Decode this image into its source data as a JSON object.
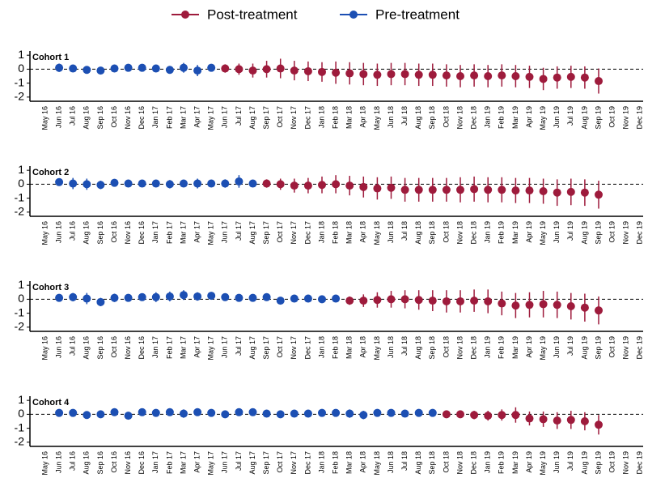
{
  "chart_data": [
    {
      "type": "errorbar",
      "title": "Cohort 1",
      "categories": [
        "May 16",
        "Jun 16",
        "Jul 16",
        "Aug 16",
        "Sep 16",
        "Oct 16",
        "Nov 16",
        "Dec 16",
        "Jan 17",
        "Feb 17",
        "Mar 17",
        "Apr 17",
        "May 17",
        "Jun 17",
        "Jul 17",
        "Aug 17",
        "Sep 17",
        "Oct 17",
        "Nov 17",
        "Dec 17",
        "Jan 18",
        "Feb 18",
        "Mar 18",
        "Apr 18",
        "May 18",
        "Jun 18",
        "Jul 18",
        "Aug 18",
        "Sep 18",
        "Oct 18",
        "Nov 18",
        "Dec 18",
        "Jan 19",
        "Feb 19",
        "Mar 19",
        "Apr 19",
        "May 19",
        "Jun 19",
        "Jul 19",
        "Aug 19",
        "Sep 19",
        "Oct 19",
        "Nov 19",
        "Dec 19"
      ],
      "ylim": [
        -2.3,
        1.3
      ],
      "yticks": [
        1,
        0,
        -1,
        -2
      ],
      "hline": 0,
      "series": [
        {
          "name": "Post-treatment",
          "color": "#9e1b3c",
          "values": [
            null,
            null,
            null,
            null,
            null,
            null,
            null,
            null,
            null,
            null,
            null,
            null,
            null,
            0.05,
            0,
            -0.1,
            0,
            0.05,
            -0.1,
            -0.15,
            -0.2,
            -0.25,
            -0.3,
            -0.35,
            -0.4,
            -0.35,
            -0.35,
            -0.4,
            -0.4,
            -0.45,
            -0.5,
            -0.45,
            -0.5,
            -0.45,
            -0.5,
            -0.55,
            -0.7,
            -0.6,
            -0.55,
            -0.6,
            -0.85,
            null,
            null,
            null
          ],
          "errors": [
            null,
            null,
            null,
            null,
            null,
            null,
            null,
            null,
            null,
            null,
            null,
            null,
            null,
            0.3,
            0.4,
            0.5,
            0.6,
            0.7,
            0.7,
            0.7,
            0.7,
            0.8,
            0.8,
            0.8,
            0.8,
            0.8,
            0.8,
            0.8,
            0.8,
            0.8,
            0.8,
            0.8,
            0.8,
            0.8,
            0.8,
            0.8,
            0.8,
            0.8,
            0.8,
            0.8,
            0.9,
            null,
            null,
            null
          ]
        },
        {
          "name": "Pre-treatment",
          "color": "#1c4fb3",
          "values": [
            null,
            0.1,
            0.05,
            -0.05,
            -0.1,
            0.05,
            0.1,
            0.1,
            0.05,
            -0.05,
            0.1,
            -0.1,
            0.1,
            null,
            null,
            null,
            null,
            null,
            null,
            null,
            null,
            null,
            null,
            null,
            null,
            null,
            null,
            null,
            null,
            null,
            null,
            null,
            null,
            null,
            null,
            null,
            null,
            null,
            null,
            null,
            null,
            null,
            null,
            null
          ],
          "errors": [
            null,
            0.3,
            0.15,
            0.15,
            0.2,
            0.15,
            0.15,
            0.2,
            0.15,
            0.2,
            0.35,
            0.4,
            0.2,
            null,
            null,
            null,
            null,
            null,
            null,
            null,
            null,
            null,
            null,
            null,
            null,
            null,
            null,
            null,
            null,
            null,
            null,
            null,
            null,
            null,
            null,
            null,
            null,
            null,
            null,
            null,
            null,
            null,
            null,
            null
          ]
        }
      ]
    },
    {
      "type": "errorbar",
      "title": "Cohort 2",
      "categories": [
        "May 16",
        "Jun 16",
        "Jul 16",
        "Aug 16",
        "Sep 16",
        "Oct 16",
        "Nov 16",
        "Dec 16",
        "Jan 17",
        "Feb 17",
        "Mar 17",
        "Apr 17",
        "May 17",
        "Jun 17",
        "Jul 17",
        "Aug 17",
        "Sep 17",
        "Oct 17",
        "Nov 17",
        "Dec 17",
        "Jan 18",
        "Feb 18",
        "Mar 18",
        "Apr 18",
        "May 18",
        "Jun 18",
        "Jul 18",
        "Aug 18",
        "Sep 18",
        "Oct 18",
        "Nov 18",
        "Dec 18",
        "Jan 19",
        "Feb 19",
        "Mar 19",
        "Apr 19",
        "May 19",
        "Jun 19",
        "Jul 19",
        "Aug 19",
        "Sep 19",
        "Oct 19",
        "Nov 19",
        "Dec 19"
      ],
      "ylim": [
        -2.3,
        1.3
      ],
      "yticks": [
        1,
        0,
        -1,
        -2
      ],
      "hline": 0,
      "series": [
        {
          "name": "Post-treatment",
          "color": "#9e1b3c",
          "values": [
            null,
            null,
            null,
            null,
            null,
            null,
            null,
            null,
            null,
            null,
            null,
            null,
            null,
            null,
            null,
            null,
            0.05,
            0,
            -0.1,
            -0.1,
            -0.05,
            0,
            -0.1,
            -0.2,
            -0.3,
            -0.25,
            -0.4,
            -0.4,
            -0.4,
            -0.4,
            -0.4,
            -0.35,
            -0.4,
            -0.4,
            -0.45,
            -0.45,
            -0.5,
            -0.6,
            -0.55,
            -0.6,
            -0.75,
            null,
            null,
            null
          ],
          "errors": [
            null,
            null,
            null,
            null,
            null,
            null,
            null,
            null,
            null,
            null,
            null,
            null,
            null,
            null,
            null,
            null,
            0.3,
            0.4,
            0.5,
            0.55,
            0.6,
            0.65,
            0.7,
            0.75,
            0.8,
            0.8,
            0.85,
            0.85,
            0.85,
            0.85,
            0.9,
            0.9,
            0.9,
            0.9,
            0.9,
            0.9,
            0.9,
            0.95,
            0.95,
            0.95,
            1.0,
            null,
            null,
            null
          ]
        },
        {
          "name": "Pre-treatment",
          "color": "#1c4fb3",
          "values": [
            null,
            0.15,
            0.05,
            0,
            -0.05,
            0.1,
            0.05,
            0.05,
            0.05,
            0,
            0.05,
            0.05,
            0.05,
            0.05,
            0.2,
            0.05,
            null,
            null,
            null,
            null,
            null,
            null,
            null,
            null,
            null,
            null,
            null,
            null,
            null,
            null,
            null,
            null,
            null,
            null,
            null,
            null,
            null,
            null,
            null,
            null,
            null,
            null,
            null,
            null
          ],
          "errors": [
            null,
            0.2,
            0.4,
            0.4,
            0.3,
            0.2,
            0.2,
            0.15,
            0.2,
            0.3,
            0.2,
            0.35,
            0.2,
            0.3,
            0.45,
            0.15,
            null,
            null,
            null,
            null,
            null,
            null,
            null,
            null,
            null,
            null,
            null,
            null,
            null,
            null,
            null,
            null,
            null,
            null,
            null,
            null,
            null,
            null,
            null,
            null,
            null,
            null,
            null,
            null
          ]
        }
      ]
    },
    {
      "type": "errorbar",
      "title": "Cohort 3",
      "categories": [
        "May 16",
        "Jun 16",
        "Jul 16",
        "Aug 16",
        "Sep 16",
        "Oct 16",
        "Nov 16",
        "Dec 16",
        "Jan 17",
        "Feb 17",
        "Mar 17",
        "Apr 17",
        "May 17",
        "Jun 17",
        "Jul 17",
        "Aug 17",
        "Sep 17",
        "Oct 17",
        "Nov 17",
        "Dec 17",
        "Jan 18",
        "Feb 18",
        "Mar 18",
        "Apr 18",
        "May 18",
        "Jun 18",
        "Jul 18",
        "Aug 18",
        "Sep 18",
        "Oct 18",
        "Nov 18",
        "Dec 18",
        "Jan 19",
        "Feb 19",
        "Mar 19",
        "Apr 19",
        "May 19",
        "Jun 19",
        "Jul 19",
        "Aug 19",
        "Sep 19",
        "Oct 19",
        "Nov 19",
        "Dec 19"
      ],
      "ylim": [
        -2.3,
        1.3
      ],
      "yticks": [
        1,
        0,
        -1,
        -2
      ],
      "hline": 0,
      "series": [
        {
          "name": "Post-treatment",
          "color": "#9e1b3c",
          "values": [
            null,
            null,
            null,
            null,
            null,
            null,
            null,
            null,
            null,
            null,
            null,
            null,
            null,
            null,
            null,
            null,
            null,
            null,
            null,
            null,
            null,
            null,
            -0.1,
            -0.1,
            -0.05,
            0,
            0,
            -0.05,
            -0.1,
            -0.15,
            -0.15,
            -0.1,
            -0.15,
            -0.3,
            -0.45,
            -0.4,
            -0.35,
            -0.4,
            -0.5,
            -0.6,
            -0.8,
            null,
            null,
            null
          ],
          "errors": [
            null,
            null,
            null,
            null,
            null,
            null,
            null,
            null,
            null,
            null,
            null,
            null,
            null,
            null,
            null,
            null,
            null,
            null,
            null,
            null,
            null,
            null,
            0.3,
            0.45,
            0.55,
            0.6,
            0.65,
            0.7,
            0.75,
            0.8,
            0.8,
            0.8,
            0.85,
            0.85,
            0.9,
            0.9,
            0.95,
            0.95,
            0.95,
            1.0,
            1.0,
            null,
            null,
            null
          ]
        },
        {
          "name": "Pre-treatment",
          "color": "#1c4fb3",
          "values": [
            null,
            0.1,
            0.15,
            0.05,
            -0.2,
            0.1,
            0.1,
            0.15,
            0.15,
            0.2,
            0.3,
            0.2,
            0.25,
            0.15,
            0.1,
            0.1,
            0.15,
            -0.1,
            0.05,
            0.05,
            0,
            0.05,
            null,
            null,
            null,
            null,
            null,
            null,
            null,
            null,
            null,
            null,
            null,
            null,
            null,
            null,
            null,
            null,
            null,
            null,
            null,
            null,
            null,
            null
          ],
          "errors": [
            null,
            0.2,
            0.3,
            0.4,
            0.3,
            0.3,
            0.2,
            0.2,
            0.35,
            0.35,
            0.35,
            0.3,
            0.25,
            0.25,
            0.2,
            0.2,
            0.2,
            0.2,
            0.25,
            0.2,
            0.2,
            0.2,
            null,
            null,
            null,
            null,
            null,
            null,
            null,
            null,
            null,
            null,
            null,
            null,
            null,
            null,
            null,
            null,
            null,
            null,
            null,
            null,
            null,
            null
          ]
        }
      ]
    },
    {
      "type": "errorbar",
      "title": "Cohort 4",
      "categories": [
        "May 16",
        "Jun 16",
        "Jul 16",
        "Aug 16",
        "Sep 16",
        "Oct 16",
        "Nov 16",
        "Dec 16",
        "Jan 17",
        "Feb 17",
        "Mar 17",
        "Apr 17",
        "May 17",
        "Jun 17",
        "Jul 17",
        "Aug 17",
        "Sep 17",
        "Oct 17",
        "Nov 17",
        "Dec 17",
        "Jan 18",
        "Feb 18",
        "Mar 18",
        "Apr 18",
        "May 18",
        "Jun 18",
        "Jul 18",
        "Aug 18",
        "Sep 18",
        "Oct 18",
        "Nov 18",
        "Dec 18",
        "Jan 19",
        "Feb 19",
        "Mar 19",
        "Apr 19",
        "May 19",
        "Jun 19",
        "Jul 19",
        "Aug 19",
        "Sep 19",
        "Oct 19",
        "Nov 19",
        "Dec 19"
      ],
      "ylim": [
        -2.3,
        1.3
      ],
      "yticks": [
        1,
        0,
        -1,
        -2
      ],
      "hline": 0,
      "series": [
        {
          "name": "Post-treatment",
          "color": "#9e1b3c",
          "values": [
            null,
            null,
            null,
            null,
            null,
            null,
            null,
            null,
            null,
            null,
            null,
            null,
            null,
            null,
            null,
            null,
            null,
            null,
            null,
            null,
            null,
            null,
            null,
            null,
            null,
            null,
            null,
            null,
            null,
            0,
            0,
            -0.05,
            -0.1,
            -0.05,
            -0.05,
            -0.3,
            -0.35,
            -0.45,
            -0.4,
            -0.5,
            -0.75,
            null,
            null,
            null
          ],
          "errors": [
            null,
            null,
            null,
            null,
            null,
            null,
            null,
            null,
            null,
            null,
            null,
            null,
            null,
            null,
            null,
            null,
            null,
            null,
            null,
            null,
            null,
            null,
            null,
            null,
            null,
            null,
            null,
            null,
            null,
            0.15,
            0.2,
            0.3,
            0.35,
            0.4,
            0.55,
            0.5,
            0.55,
            0.6,
            0.65,
            0.65,
            0.7,
            null,
            null,
            null
          ]
        },
        {
          "name": "Pre-treatment",
          "color": "#1c4fb3",
          "values": [
            null,
            0.1,
            0.1,
            -0.05,
            0,
            0.15,
            -0.1,
            0.15,
            0.1,
            0.15,
            0.05,
            0.15,
            0.1,
            0,
            0.15,
            0.15,
            0.05,
            0,
            0.05,
            0.05,
            0.1,
            0.1,
            0.05,
            -0.05,
            0.1,
            0.1,
            0.05,
            0.1,
            0.1,
            null,
            null,
            null,
            null,
            null,
            null,
            null,
            null,
            null,
            null,
            null,
            null,
            null,
            null,
            null
          ],
          "errors": [
            null,
            0.2,
            0.25,
            0.2,
            0.2,
            0.2,
            0.2,
            0.2,
            0.2,
            0.2,
            0.3,
            0.2,
            0.2,
            0.2,
            0.2,
            0.2,
            0.2,
            0.2,
            0.2,
            0.2,
            0.2,
            0.2,
            0.3,
            0.3,
            0.2,
            0.2,
            0.25,
            0.25,
            0.2,
            null,
            null,
            null,
            null,
            null,
            null,
            null,
            null,
            null,
            null,
            null,
            null,
            null,
            null,
            null
          ]
        }
      ]
    }
  ]
}
